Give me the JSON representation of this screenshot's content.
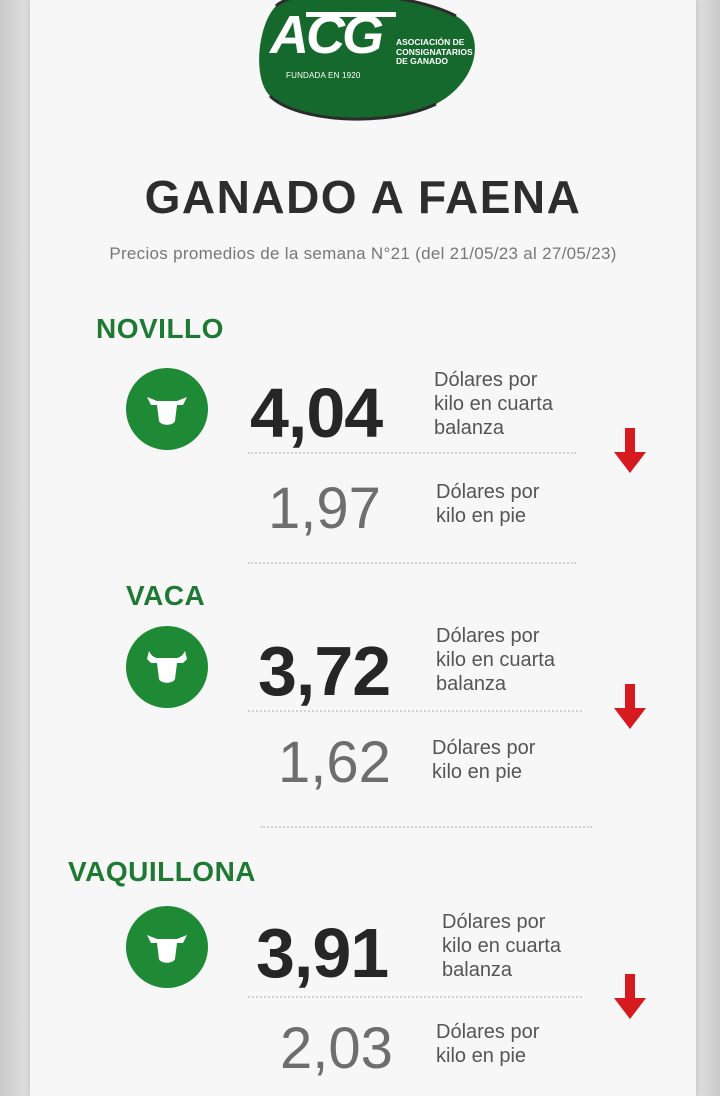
{
  "logo": {
    "brand": "ACG",
    "association": [
      "ASOCIACIÓN DE",
      "CONSIGNATARIOS",
      "DE GANADO"
    ],
    "founded": "FUNDADA EN 1920",
    "color": "#1e7a32"
  },
  "title": "GANADO A FAENA",
  "subtitle": "Precios promedios de la semana N°21 (del 21/05/23 al 27/05/23)",
  "categories": [
    {
      "name": "NOVILLO",
      "icon": "cow-head-icon",
      "main_price": "4,04",
      "main_unit": [
        "Dólares por",
        "kilo en cuarta",
        "balanza"
      ],
      "sub_price": "1,97",
      "sub_unit": [
        "Dólares por",
        "kilo en pie"
      ],
      "trend": "down"
    },
    {
      "name": "VACA",
      "icon": "cow-head-icon",
      "main_price": "3,72",
      "main_unit": [
        "Dólares por",
        "kilo en cuarta",
        "balanza"
      ],
      "sub_price": "1,62",
      "sub_unit": [
        "Dólares por",
        "kilo en pie"
      ],
      "trend": "down"
    },
    {
      "name": "VAQUILLONA",
      "icon": "cow-head-icon",
      "main_price": "3,91",
      "main_unit": [
        "Dólares por",
        "kilo en cuarta",
        "balanza"
      ],
      "sub_price": "2,03",
      "sub_unit": [
        "Dólares por",
        "kilo en pie"
      ],
      "trend": "down"
    }
  ],
  "colors": {
    "green": "#1e8a35",
    "arrow_red": "#d71920",
    "title": "#2d2d2d"
  }
}
